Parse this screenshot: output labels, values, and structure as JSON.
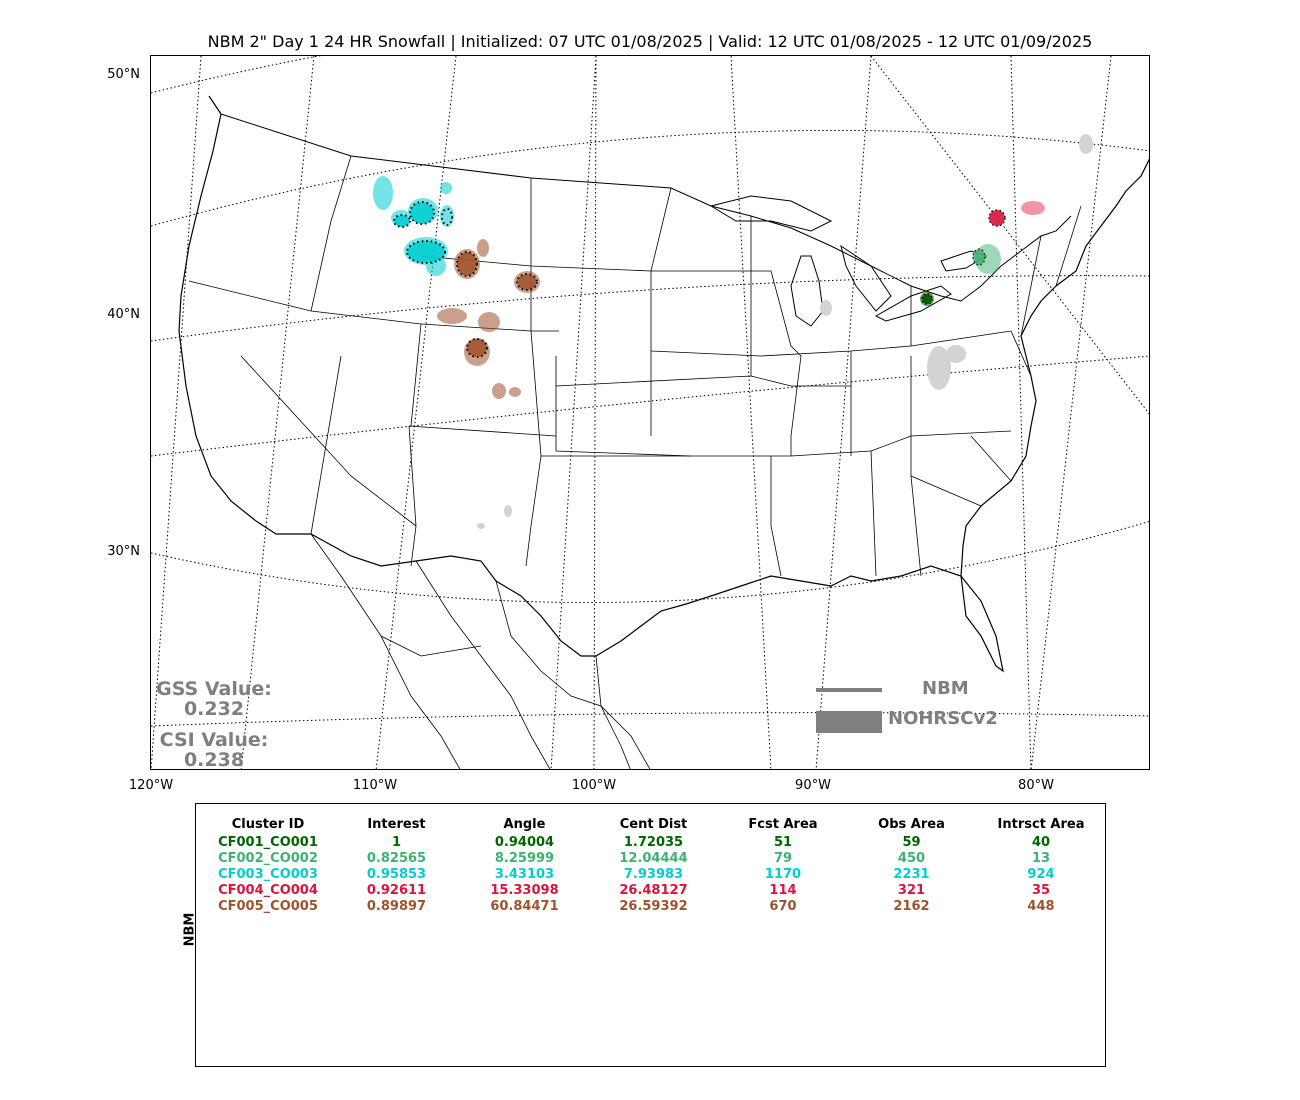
{
  "title": "NBM 2\" Day 1 24 HR Snowfall | Initialized: 07 UTC 01/08/2025 | Valid: 12 UTC 01/08/2025 - 12 UTC 01/09/2025",
  "lat_labels": [
    "50°N",
    "40°N",
    "30°N"
  ],
  "lon_labels": [
    "120°W",
    "110°W",
    "100°W",
    "90°W",
    "80°W"
  ],
  "scores": {
    "gss_label": "GSS Value:",
    "gss_value": "0.232",
    "csi_label": "CSI Value:",
    "csi_value": "0.238"
  },
  "legend": {
    "forecast": "NBM",
    "observed": "NOHRSCv2",
    "color": "#7f7f7f"
  },
  "table": {
    "ylabel": "NBM",
    "headers": [
      "Cluster ID",
      "Interest",
      "Angle",
      "Cent Dist",
      "Fcst Area",
      "Obs Area",
      "Intrsct Area"
    ],
    "rows": [
      {
        "color": "#006400",
        "cells": [
          "CF001_CO001",
          "1",
          "0.94004",
          "1.72035",
          "51",
          "59",
          "40"
        ]
      },
      {
        "color": "#3cb371",
        "cells": [
          "CF002_CO002",
          "0.82565",
          "8.25999",
          "12.04444",
          "79",
          "450",
          "13"
        ]
      },
      {
        "color": "#00ced1",
        "cells": [
          "CF003_CO003",
          "0.95853",
          "3.43103",
          "7.93983",
          "1170",
          "2231",
          "924"
        ]
      },
      {
        "color": "#dc143c",
        "cells": [
          "CF004_CO004",
          "0.92611",
          "15.33098",
          "26.48127",
          "114",
          "321",
          "35"
        ]
      },
      {
        "color": "#a0522d",
        "cells": [
          "CF005_CO005",
          "0.89897",
          "60.84471",
          "26.59392",
          "670",
          "2162",
          "448"
        ]
      }
    ]
  },
  "clusters": [
    {
      "id": "CF001_CO001",
      "color": "#006400",
      "region": "northern Ohio / Lake Erie shore"
    },
    {
      "id": "CF002_CO002",
      "color": "#3cb371",
      "region": "western New York"
    },
    {
      "id": "CF003_CO003",
      "color": "#00ced1",
      "region": "western Montana"
    },
    {
      "id": "CF004_CO004",
      "color": "#dc143c",
      "region": "northern New York / Vermont"
    },
    {
      "id": "CF005_CO005",
      "color": "#a0522d",
      "region": "Wyoming / Colorado"
    }
  ],
  "unmatched_obs_color": "#d3d3d3"
}
